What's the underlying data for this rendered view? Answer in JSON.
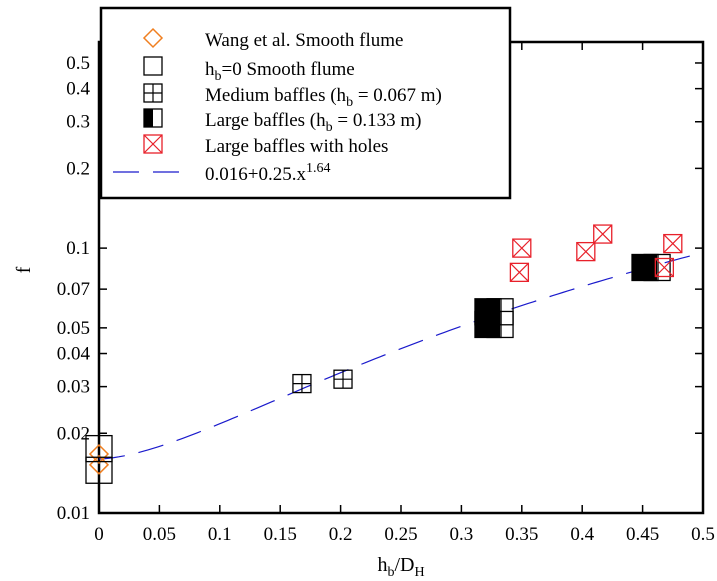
{
  "chart_data": {
    "type": "scatter",
    "title": "",
    "xlabel": {
      "base": "h",
      "sub1": "b",
      "mid": "/D",
      "sub2": "H"
    },
    "ylabel": "f",
    "xlim": [
      0,
      0.5
    ],
    "ylim": [
      0.01,
      0.6
    ],
    "y_scale": "log",
    "x_ticks": [
      0,
      0.05,
      0.1,
      0.15,
      0.2,
      0.25,
      0.3,
      0.35,
      0.4,
      0.45,
      0.5
    ],
    "x_tick_labels": [
      "0",
      "0.05",
      "0.1",
      "0.15",
      "0.2",
      "0.25",
      "0.3",
      "0.35",
      "0.4",
      "0.45",
      "0.5"
    ],
    "y_ticks": [
      0.01,
      0.02,
      0.03,
      0.04,
      0.05,
      0.07,
      0.1,
      0.2,
      0.3,
      0.4,
      0.5
    ],
    "y_tick_labels": [
      "0.01",
      "0.02",
      "0.03",
      "0.04",
      "0.05",
      "0.07",
      "0.1",
      "0.2",
      "0.3",
      "0.4",
      "0.5"
    ],
    "grid": false,
    "legend_position": "top-left",
    "series": [
      {
        "name": "Wang et al. Smooth flume",
        "legend_label": {
          "text": "Wang et al. Smooth flume"
        },
        "marker": "diamond-open",
        "color": "#f07f20",
        "points": [
          [
            0,
            0.0167
          ],
          [
            0,
            0.0152
          ]
        ]
      },
      {
        "name": "hb=0 Smooth flume",
        "legend_label": {
          "pre": "h",
          "sub": "b",
          "post": "=0 Smooth flume"
        },
        "marker": "square-open",
        "color": "#000000",
        "points": [
          [
            0,
            0.0175
          ],
          [
            0,
            0.0145
          ]
        ]
      },
      {
        "name": "Medium baffles (hb = 0.067 m)",
        "legend_label": {
          "pre": "Medium baffles (h",
          "sub": "b",
          "post": " = 0.067 m)"
        },
        "marker": "square-plus",
        "color": "#000000",
        "points": [
          [
            0.168,
            0.0308
          ],
          [
            0.202,
            0.032
          ]
        ]
      },
      {
        "name": "Large baffles (hb = 0.133 m)",
        "legend_label": {
          "pre": "Large baffles (h",
          "sub": "b",
          "post": " = 0.133 m)"
        },
        "marker": "square-half-filled",
        "color": "#000000",
        "points": [
          [
            0.322,
            0.0575
          ],
          [
            0.322,
            0.0515
          ],
          [
            0.332,
            0.0575
          ],
          [
            0.332,
            0.0515
          ],
          [
            0.452,
            0.0845
          ],
          [
            0.462,
            0.0845
          ]
        ]
      },
      {
        "name": "Large baffles with holes",
        "legend_label": {
          "text": "Large baffles with holes"
        },
        "marker": "square-x",
        "color": "#e8202a",
        "points": [
          [
            0.348,
            0.081
          ],
          [
            0.35,
            0.1
          ],
          [
            0.403,
            0.097
          ],
          [
            0.417,
            0.113
          ],
          [
            0.468,
            0.0845
          ],
          [
            0.475,
            0.104
          ]
        ]
      },
      {
        "name": "0.016+0.25.x1.64",
        "legend_label": {
          "pre": "0.016+0.25.x",
          "sup": "1.64"
        },
        "marker": "dashed-line",
        "color": "#1a1acc",
        "fit": {
          "a": 0.016,
          "b": 0.25,
          "p": 1.64,
          "x_range": [
            0,
            0.49
          ]
        }
      }
    ]
  }
}
